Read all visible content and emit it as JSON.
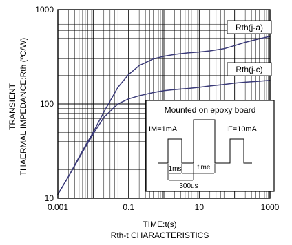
{
  "chart_data": {
    "type": "line",
    "xlabel": "TIME:t(s)",
    "ylabel_line1": "TRANSIENT",
    "ylabel_line2": "THAERMAL IMPEDANCE:Rth (ºC/W)",
    "caption": "Rth-t CHARACTERISTICS",
    "x_scale": "log",
    "y_scale": "log",
    "xlim": [
      0.001,
      1000
    ],
    "ylim": [
      10,
      1000
    ],
    "grid": true,
    "x_ticks": [
      {
        "value": 0.001,
        "label": "0.001"
      },
      {
        "value": 0.1,
        "label": "0.1"
      },
      {
        "value": 10,
        "label": "10"
      },
      {
        "value": 1000,
        "label": "1000"
      }
    ],
    "y_ticks": [
      {
        "value": 10,
        "label": "10"
      },
      {
        "value": 100,
        "label": "100"
      },
      {
        "value": 1000,
        "label": "1000"
      }
    ],
    "series": [
      {
        "name": "Rth(j-a)",
        "color": "#3a3a78",
        "x": [
          0.001,
          0.002,
          0.005,
          0.01,
          0.02,
          0.05,
          0.1,
          0.2,
          0.5,
          1,
          2,
          5,
          10,
          20,
          50,
          100,
          200,
          500,
          1000
        ],
        "y": [
          11,
          17,
          32,
          50,
          82,
          150,
          205,
          255,
          300,
          320,
          335,
          348,
          355,
          365,
          385,
          415,
          450,
          490,
          520
        ]
      },
      {
        "name": "Rth(j-c)",
        "color": "#3a3a78",
        "x": [
          0.001,
          0.002,
          0.005,
          0.01,
          0.02,
          0.05,
          0.1,
          0.2,
          0.5,
          1,
          2,
          5,
          10,
          20,
          50,
          100,
          200,
          500,
          1000
        ],
        "y": [
          11,
          17,
          31,
          48,
          72,
          100,
          113,
          122,
          132,
          138,
          142,
          146,
          150,
          155,
          161,
          166,
          170,
          174,
          178
        ]
      }
    ],
    "inset": {
      "title": "Mounted on epoxy board",
      "im_label": "IM=1mA",
      "if_label": "IF=10mA",
      "dim_1ms": "1ms",
      "dim_time": "time",
      "dim_300us": "300us"
    }
  }
}
